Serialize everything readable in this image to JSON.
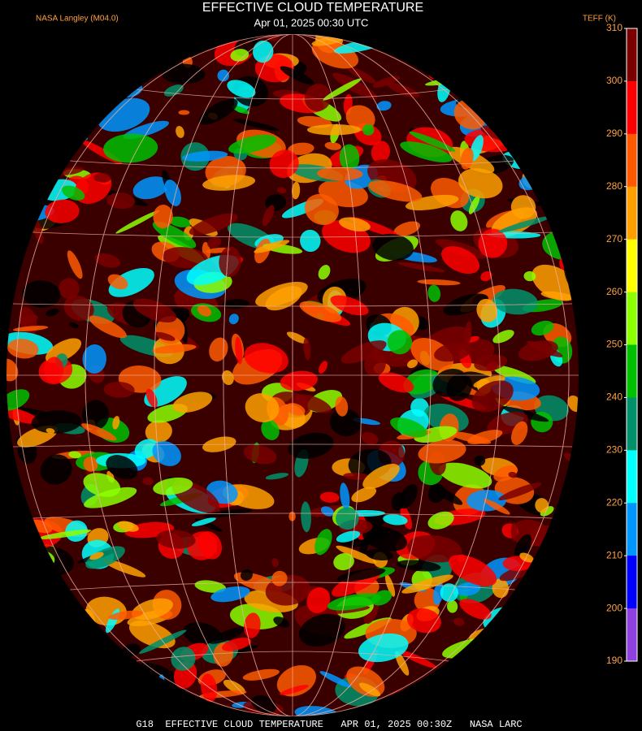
{
  "header": {
    "title": "EFFECTIVE CLOUD TEMPERATURE",
    "subtitle": "Apr 01, 2025 00:30 UTC",
    "credit": "NASA Langley (M04.0)"
  },
  "colorbar": {
    "label": "TEFF (K)",
    "ticks": [
      310,
      300,
      290,
      280,
      270,
      260,
      250,
      240,
      230,
      220,
      210,
      200,
      190
    ],
    "colors": [
      "#7a0000",
      "#ff0000",
      "#ff5a00",
      "#ffa000",
      "#ffff00",
      "#8cff00",
      "#00c000",
      "#00906a",
      "#00ffff",
      "#0096ff",
      "#0000ff",
      "#9040e0"
    ]
  },
  "footer": "G18  EFFECTIVE CLOUD TEMPERATURE   APR 01, 2025 00:30Z   NASA LARC"
}
